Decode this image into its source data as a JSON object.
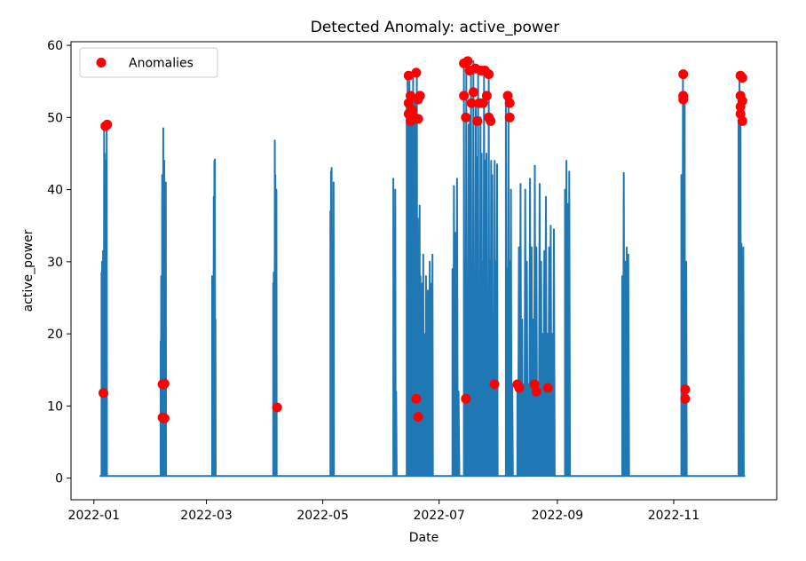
{
  "chart_data": {
    "type": "line",
    "title": "Detected Anomaly: active_power",
    "xlabel": "Date",
    "ylabel": "active_power",
    "xlim": [
      "2021-12-20",
      "2022-12-25"
    ],
    "ylim": [
      -3,
      60.5
    ],
    "x_ticks": [
      "2022-01-01",
      "2022-03-01",
      "2022-05-01",
      "2022-07-01",
      "2022-09-01",
      "2022-11-01"
    ],
    "x_tick_labels": [
      "2022-01",
      "2022-03",
      "2022-05",
      "2022-07",
      "2022-09",
      "2022-11"
    ],
    "y_ticks": [
      0,
      10,
      20,
      30,
      40,
      50,
      60
    ],
    "grid": false,
    "legend": {
      "position": "top-left",
      "entries": [
        "Anomalies"
      ]
    },
    "colors": {
      "line": "#1f77b4",
      "anomaly": "#ff0000"
    },
    "series": [
      {
        "type": "line",
        "bursts": [
          {
            "start": "2022-01-05",
            "end": "2022-01-08",
            "values": [
              28.5,
              30,
              10,
              31.5,
              12,
              48.5,
              45,
              44,
              20,
              12,
              49
            ]
          },
          {
            "start": "2022-02-05",
            "end": "2022-02-08",
            "values": [
              19,
              28,
              8,
              42,
              13,
              48.5,
              40,
              44,
              13,
              8,
              41
            ]
          },
          {
            "start": "2022-03-04",
            "end": "2022-03-06",
            "values": [
              28,
              18,
              12,
              39,
              44,
              44.2,
              22
            ]
          },
          {
            "start": "2022-04-05",
            "end": "2022-04-07",
            "values": [
              27,
              28.5,
              20,
              46.8,
              42,
              10,
              40
            ]
          },
          {
            "start": "2022-05-05",
            "end": "2022-05-07",
            "values": [
              37,
              42.5,
              43,
              32,
              10,
              41
            ]
          },
          {
            "start": "2022-06-07",
            "end": "2022-06-09",
            "values": [
              41.5,
              32,
              40,
              12
            ]
          },
          {
            "start": "2022-06-14",
            "end": "2022-06-28",
            "values": [
              52,
              56,
              30,
              55,
              20,
              52,
              8,
              56,
              12,
              53,
              10,
              56,
              36,
              12,
              37.8,
              28,
              10,
              27,
              31,
              12,
              20,
              28,
              18,
              26,
              8,
              30,
              22,
              27,
              31
            ]
          },
          {
            "start": "2022-07-08",
            "end": "2022-07-12",
            "values": [
              29,
              40.5,
              34,
              41.5,
              12
            ]
          },
          {
            "start": "2022-07-14",
            "end": "2022-08-01",
            "values": [
              57.5,
              30,
              56.5,
              12,
              49,
              50,
              56,
              30,
              57.8,
              13,
              52,
              44.5,
              56,
              12,
              50,
              45,
              30,
              56.5,
              44,
              45,
              13,
              56,
              30,
              44,
              42,
              20,
              44,
              30,
              43.5
            ]
          },
          {
            "start": "2022-08-05",
            "end": "2022-08-09",
            "values": [
              53,
              29,
              52,
              30,
              40,
              13
            ]
          },
          {
            "start": "2022-08-11",
            "end": "2022-08-31",
            "values": [
              13,
              32,
              40.8,
              22,
              13,
              40,
              30,
              13,
              41.5,
              32,
              22,
              43.3,
              32,
              12,
              40.8,
              30,
              20,
              31.5,
              39,
              20,
              32,
              35,
              20,
              34.5
            ]
          },
          {
            "start": "2022-09-05",
            "end": "2022-09-08",
            "values": [
              40,
              44,
              38,
              42.5
            ]
          },
          {
            "start": "2022-10-05",
            "end": "2022-10-09",
            "values": [
              28,
              42.3,
              30,
              32,
              31
            ]
          },
          {
            "start": "2022-11-05",
            "end": "2022-11-08",
            "values": [
              42,
              12,
              56,
              43.8,
              53,
              11,
              30
            ]
          },
          {
            "start": "2022-12-05",
            "end": "2022-12-08",
            "values": [
              49.5,
              55.8,
              52,
              32.5,
              30,
              32
            ]
          }
        ]
      },
      {
        "type": "scatter",
        "name": "Anomalies",
        "points": [
          [
            "2022-01-06",
            11.8
          ],
          [
            "2022-01-07",
            48.8
          ],
          [
            "2022-01-08",
            49
          ],
          [
            "2022-02-06",
            13
          ],
          [
            "2022-02-07",
            13.1
          ],
          [
            "2022-02-06",
            8.4
          ],
          [
            "2022-02-07",
            8.3
          ],
          [
            "2022-04-07",
            9.8
          ],
          [
            "2022-06-15",
            55.8
          ],
          [
            "2022-06-15",
            52
          ],
          [
            "2022-06-15",
            50.5
          ],
          [
            "2022-06-16",
            49.5
          ],
          [
            "2022-06-16",
            53
          ],
          [
            "2022-06-17",
            51
          ],
          [
            "2022-06-18",
            50
          ],
          [
            "2022-06-19",
            56.2
          ],
          [
            "2022-06-20",
            52.5
          ],
          [
            "2022-06-20",
            49.8
          ],
          [
            "2022-06-21",
            53
          ],
          [
            "2022-06-19",
            11
          ],
          [
            "2022-06-20",
            8.5
          ],
          [
            "2022-07-14",
            57.5
          ],
          [
            "2022-07-14",
            53
          ],
          [
            "2022-07-15",
            50
          ],
          [
            "2022-07-15",
            11
          ],
          [
            "2022-07-16",
            57.8
          ],
          [
            "2022-07-17",
            56.5
          ],
          [
            "2022-07-18",
            52
          ],
          [
            "2022-07-19",
            53.5
          ],
          [
            "2022-07-20",
            56.8
          ],
          [
            "2022-07-21",
            49.5
          ],
          [
            "2022-07-22",
            52
          ],
          [
            "2022-07-23",
            56.5
          ],
          [
            "2022-07-24",
            52
          ],
          [
            "2022-07-25",
            56.5
          ],
          [
            "2022-07-26",
            53
          ],
          [
            "2022-07-27",
            50
          ],
          [
            "2022-07-27",
            56
          ],
          [
            "2022-07-28",
            49.5
          ],
          [
            "2022-07-30",
            13
          ],
          [
            "2022-08-06",
            53
          ],
          [
            "2022-08-07",
            52
          ],
          [
            "2022-08-07",
            50
          ],
          [
            "2022-08-11",
            13
          ],
          [
            "2022-08-12",
            12.5
          ],
          [
            "2022-08-20",
            13
          ],
          [
            "2022-08-21",
            12
          ],
          [
            "2022-08-27",
            12.5
          ],
          [
            "2022-11-06",
            56
          ],
          [
            "2022-11-06",
            53
          ],
          [
            "2022-11-06",
            52.5
          ],
          [
            "2022-11-07",
            12.3
          ],
          [
            "2022-11-07",
            11
          ],
          [
            "2022-12-06",
            55.8
          ],
          [
            "2022-12-06",
            53
          ],
          [
            "2022-12-06",
            51.5
          ],
          [
            "2022-12-06",
            50.5
          ],
          [
            "2022-12-07",
            49.5
          ],
          [
            "2022-12-07",
            52.3
          ],
          [
            "2022-12-07",
            55.5
          ]
        ]
      }
    ]
  }
}
